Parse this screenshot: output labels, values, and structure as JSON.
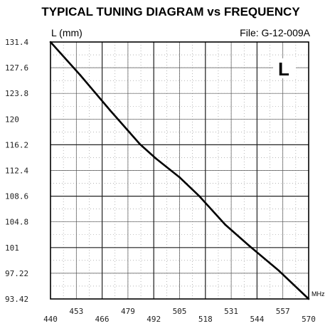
{
  "chart_data": {
    "type": "line",
    "title": "TYPICAL TUNING DIAGRAM vs FREQUENCY",
    "ylabel": "L (mm)",
    "xlabel": "MHz",
    "file_label": "File:  G-12-009A",
    "series_letter": "L",
    "x_ticks_bottom": [
      "440",
      "466",
      "492",
      "518",
      "544",
      "570"
    ],
    "x_ticks_top": [
      "453",
      "479",
      "505",
      "531",
      "557"
    ],
    "y_ticks": [
      "131.4",
      "127.6",
      "123.8",
      "120",
      "116.2",
      "112.4",
      "108.6",
      "104.8",
      "101",
      "97.22",
      "93.42"
    ],
    "xlim": [
      440,
      570
    ],
    "ylim": [
      93.42,
      131.4
    ],
    "grid": true,
    "series": [
      {
        "x": [
          440,
          455,
          470,
          485,
          493,
          505,
          515,
          528,
          540,
          555,
          570
        ],
        "y": [
          131.4,
          126.5,
          121.3,
          116.3,
          114.2,
          111.4,
          108.6,
          104.4,
          101.3,
          97.6,
          93.42
        ]
      }
    ],
    "colors": {
      "line": "#000000",
      "grid": "#888888",
      "axis": "#000000"
    }
  }
}
